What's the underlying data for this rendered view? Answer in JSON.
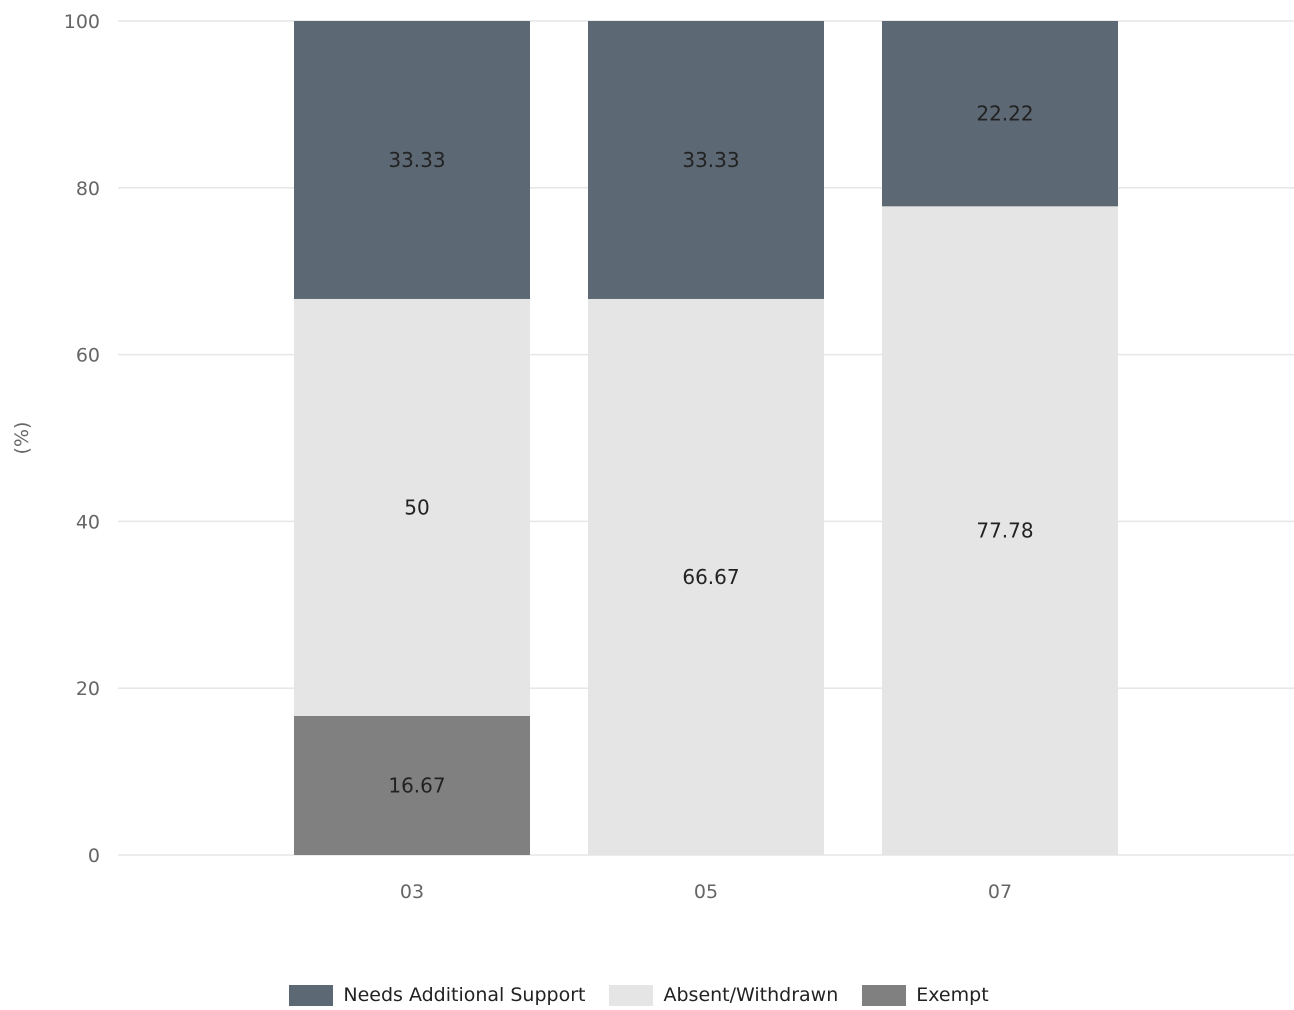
{
  "chart_data": {
    "type": "bar",
    "stacked": true,
    "categories": [
      "03",
      "05",
      "07"
    ],
    "series": [
      {
        "name": "Exempt",
        "values": [
          16.67,
          0,
          0
        ],
        "color": "#808080"
      },
      {
        "name": "Absent/Withdrawn",
        "values": [
          50,
          66.67,
          77.78
        ],
        "color": "#e5e5e5"
      },
      {
        "name": "Needs Additional Support",
        "values": [
          33.33,
          33.33,
          22.22
        ],
        "color": "#5c6873"
      }
    ],
    "title": "",
    "xlabel": "",
    "ylabel": "(%)",
    "ylim": [
      0,
      100
    ],
    "yticks": [
      0,
      20,
      40,
      60,
      80,
      100
    ],
    "grid": true,
    "legend_placement": "bottom-center",
    "legend_order": [
      "Needs Additional Support",
      "Absent/Withdrawn",
      "Exempt"
    ]
  }
}
